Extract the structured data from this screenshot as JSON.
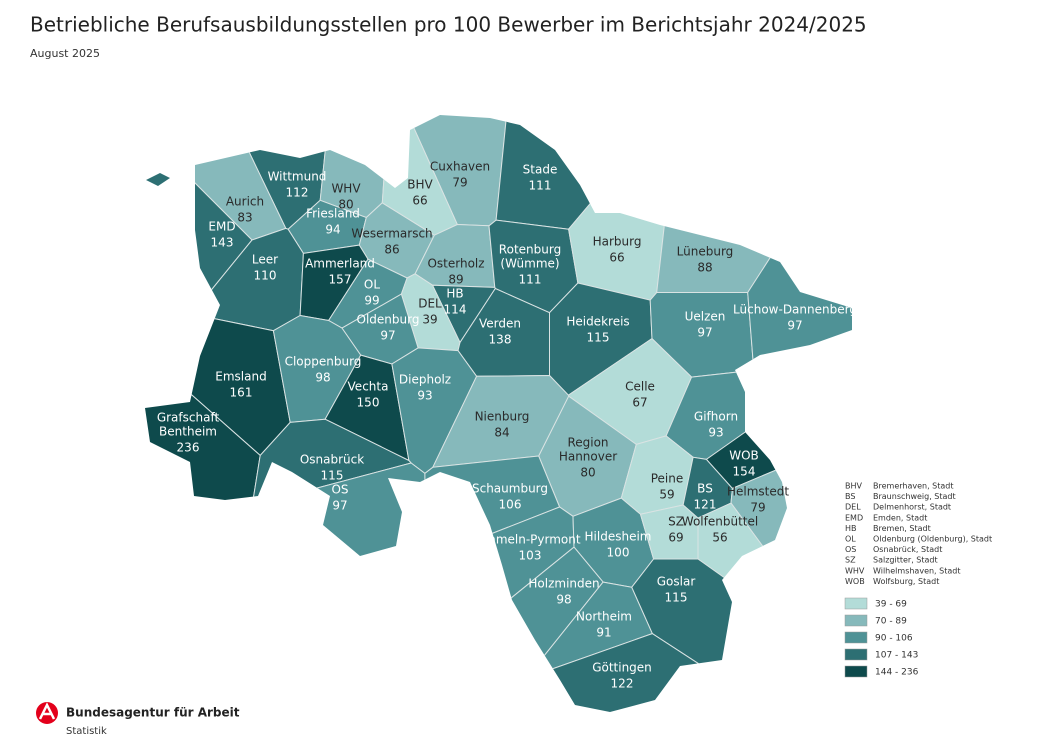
{
  "header": {
    "title": "Betriebliche Berufsausbildungsstellen pro 100 Bewerber im Berichtsjahr 2024/2025",
    "subtitle": "August 2025"
  },
  "regions": [
    {
      "name_lines": [
        "Wittmund"
      ],
      "value": 112
    },
    {
      "name_lines": [
        "WHV"
      ],
      "value": 80
    },
    {
      "name_lines": [
        "Aurich"
      ],
      "value": 83
    },
    {
      "name_lines": [
        "EMD"
      ],
      "value": 143
    },
    {
      "name_lines": [
        "Friesland"
      ],
      "value": 94
    },
    {
      "name_lines": [
        "Wesermarsch"
      ],
      "value": 86
    },
    {
      "name_lines": [
        "Cuxhaven"
      ],
      "value": 79
    },
    {
      "name_lines": [
        "BHV"
      ],
      "value": 66
    },
    {
      "name_lines": [
        "Stade"
      ],
      "value": 111
    },
    {
      "name_lines": [
        "Leer"
      ],
      "value": 110
    },
    {
      "name_lines": [
        "Ammerland"
      ],
      "value": 157
    },
    {
      "name_lines": [
        "OL"
      ],
      "value": 99
    },
    {
      "name_lines": [
        "Osterholz"
      ],
      "value": 89
    },
    {
      "name_lines": [
        "Rotenburg",
        "(Wümme)"
      ],
      "value": 111
    },
    {
      "name_lines": [
        "Harburg"
      ],
      "value": 66
    },
    {
      "name_lines": [
        "Lüneburg"
      ],
      "value": 88
    },
    {
      "name_lines": [
        "HB"
      ],
      "value": 114
    },
    {
      "name_lines": [
        "DEL"
      ],
      "value": 39
    },
    {
      "name_lines": [
        "Oldenburg"
      ],
      "value": 97
    },
    {
      "name_lines": [
        "Verden"
      ],
      "value": 138
    },
    {
      "name_lines": [
        "Heidekreis"
      ],
      "value": 115
    },
    {
      "name_lines": [
        "Uelzen"
      ],
      "value": 97
    },
    {
      "name_lines": [
        "Lüchow-Dannenberg"
      ],
      "value": 97
    },
    {
      "name_lines": [
        "Emsland"
      ],
      "value": 161
    },
    {
      "name_lines": [
        "Cloppenburg"
      ],
      "value": 98
    },
    {
      "name_lines": [
        "Vechta"
      ],
      "value": 150
    },
    {
      "name_lines": [
        "Diepholz"
      ],
      "value": 93
    },
    {
      "name_lines": [
        "Nienburg"
      ],
      "value": 84
    },
    {
      "name_lines": [
        "Celle"
      ],
      "value": 67
    },
    {
      "name_lines": [
        "Gifhorn"
      ],
      "value": 93
    },
    {
      "name_lines": [
        "Grafschaft",
        "Bentheim"
      ],
      "value": 236
    },
    {
      "name_lines": [
        "Osnabrück"
      ],
      "value": 115
    },
    {
      "name_lines": [
        "OS"
      ],
      "value": 97
    },
    {
      "name_lines": [
        "Region",
        "Hannover"
      ],
      "value": 80
    },
    {
      "name_lines": [
        "WOB"
      ],
      "value": 154
    },
    {
      "name_lines": [
        "Schaumburg"
      ],
      "value": 106
    },
    {
      "name_lines": [
        "Peine"
      ],
      "value": 59
    },
    {
      "name_lines": [
        "BS"
      ],
      "value": 121
    },
    {
      "name_lines": [
        "Helmstedt"
      ],
      "value": 79
    },
    {
      "name_lines": [
        "Hameln-Pyrmont"
      ],
      "value": 103
    },
    {
      "name_lines": [
        "Hildesheim"
      ],
      "value": 100
    },
    {
      "name_lines": [
        "SZ"
      ],
      "value": 69
    },
    {
      "name_lines": [
        "Wolfenbüttel"
      ],
      "value": 56
    },
    {
      "name_lines": [
        "Holzminden"
      ],
      "value": 98
    },
    {
      "name_lines": [
        "Goslar"
      ],
      "value": 115
    },
    {
      "name_lines": [
        "Northeim"
      ],
      "value": 91
    },
    {
      "name_lines": [
        "Göttingen"
      ],
      "value": 122
    }
  ],
  "abbreviations": [
    {
      "code": "BHV",
      "name": "Bremerhaven, Stadt"
    },
    {
      "code": "BS",
      "name": "Braunschweig, Stadt"
    },
    {
      "code": "DEL",
      "name": "Delmenhorst, Stadt"
    },
    {
      "code": "EMD",
      "name": "Emden, Stadt"
    },
    {
      "code": "HB",
      "name": "Bremen, Stadt"
    },
    {
      "code": "OL",
      "name": "Oldenburg (Oldenburg), Stadt"
    },
    {
      "code": "OS",
      "name": "Osnabrück, Stadt"
    },
    {
      "code": "SZ",
      "name": "Salzgitter, Stadt"
    },
    {
      "code": "WHV",
      "name": "Wilhelmshaven, Stadt"
    },
    {
      "code": "WOB",
      "name": "Wolfsburg, Stadt"
    }
  ],
  "legend": [
    {
      "label": "39 - 69",
      "min": 39,
      "max": 69,
      "color": "#b3dcd8"
    },
    {
      "label": "70 - 89",
      "min": 70,
      "max": 89,
      "color": "#86b9bb"
    },
    {
      "label": "90 - 106",
      "min": 90,
      "max": 106,
      "color": "#4f9296"
    },
    {
      "label": "107 - 143",
      "min": 107,
      "max": 143,
      "color": "#2d6f73"
    },
    {
      "label": "144 - 236",
      "min": 144,
      "max": 236,
      "color": "#0e4a4c"
    }
  ],
  "footer": {
    "organization": "Bundesagentur für Arbeit",
    "unit": "Statistik"
  }
}
